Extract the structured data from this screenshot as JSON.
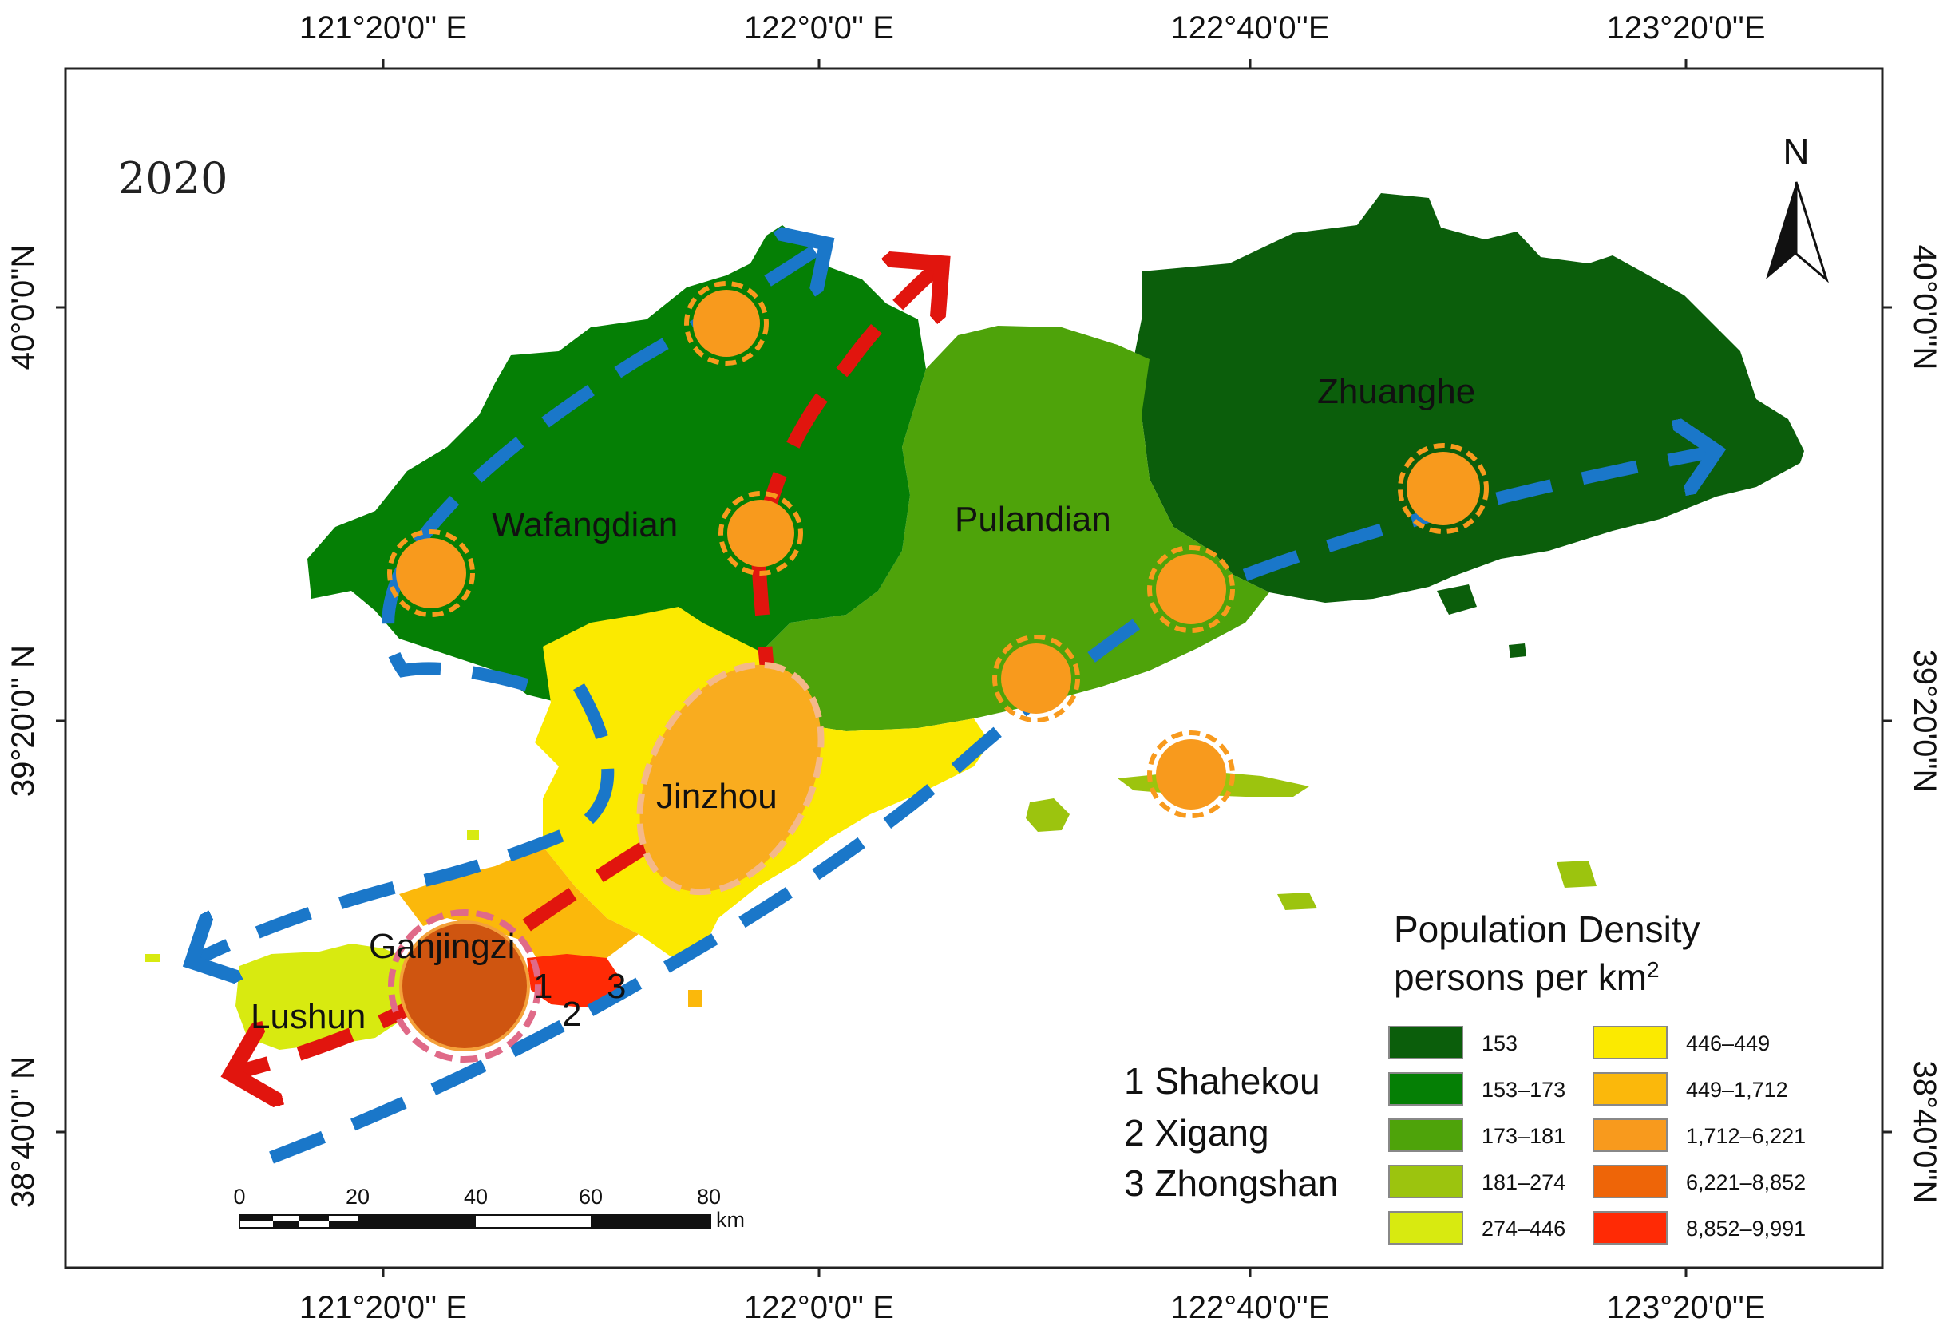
{
  "year": "2020",
  "north_label": "N",
  "axes": {
    "top_ticks": [
      "121°20'0'' E",
      "122°0'0'' E",
      "122°40'0''E",
      "123°20'0''E"
    ],
    "bottom_ticks": [
      "121°20'0'' E",
      "122°0'0'' E",
      "122°40'0''E",
      "123°20'0''E"
    ],
    "left_ticks": [
      "40°0'0''N",
      "39°20'0'' N",
      "38°40'0'' N"
    ],
    "right_ticks": [
      "40°0'0''N",
      "39°20'0''N",
      "38°40'0''N"
    ]
  },
  "regions": {
    "zhuanghe": "Zhuanghe",
    "wafangdian": "Wafangdian",
    "pulandian": "Pulandian",
    "jinzhou": "Jinzhou",
    "ganjingzi": "Ganjingzi",
    "lushun": "Lushun",
    "num1": "1",
    "num2": "2",
    "num3": "3"
  },
  "districts": [
    "1 Shahekou",
    "2 Xigang",
    "3 Zhongshan"
  ],
  "scale_bar": {
    "ticks": [
      "0",
      "20",
      "40",
      "60",
      "80"
    ],
    "unit": "km"
  },
  "legend": {
    "title_line1": "Population Density",
    "title_line2": "persons per km",
    "title_sup": "2",
    "items": [
      {
        "label": "153",
        "color": "#0b5e0b"
      },
      {
        "label": "153–173",
        "color": "#057f05"
      },
      {
        "label": "173–181",
        "color": "#4ea30a"
      },
      {
        "label": "181–274",
        "color": "#9cc40e"
      },
      {
        "label": "274–446",
        "color": "#d8ea10"
      },
      {
        "label": "446–449",
        "color": "#fbea00"
      },
      {
        "label": "449–1,712",
        "color": "#fbb80b"
      },
      {
        "label": "1,712–6,221",
        "color": "#f89a1d"
      },
      {
        "label": "6,221–8,852",
        "color": "#ee6508"
      },
      {
        "label": "8,852–9,991",
        "color": "#ff2a05"
      }
    ]
  },
  "colors": {
    "blue_arrow": "#1a77c9",
    "red_arrow": "#e1150e",
    "node_fill": "#f89a1d",
    "ganjingzi_fill": "#cf5510"
  }
}
